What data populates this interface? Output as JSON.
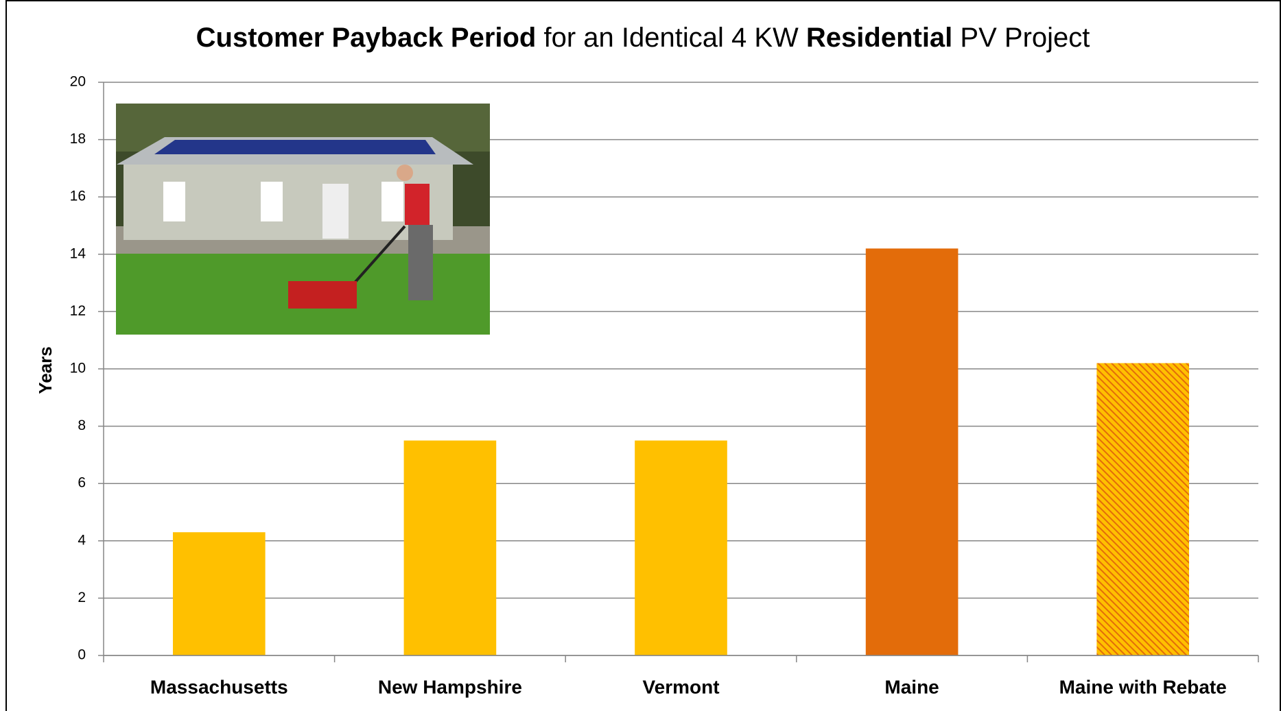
{
  "chart_data": {
    "type": "bar",
    "title": [
      {
        "text": "Customer Payback Period",
        "bold": true
      },
      {
        "text": " for an Identical 4 KW ",
        "bold": false
      },
      {
        "text": "Residential",
        "bold": true
      },
      {
        "text": " PV Project",
        "bold": false
      }
    ],
    "y_label": "Years",
    "categories": [
      "Massachusetts",
      "New Hampshire",
      "Vermont",
      "Maine",
      "Maine with Rebate"
    ],
    "values": [
      4.3,
      7.5,
      7.5,
      14.2,
      10.2
    ],
    "colors": [
      "#ffc000",
      "#ffc000",
      "#ffc000",
      "#e36c0a",
      "#f28a1a"
    ],
    "hatched": [
      false,
      false,
      false,
      false,
      true
    ],
    "ylim": [
      0,
      20
    ],
    "yticks": [
      0,
      2,
      4,
      6,
      8,
      10,
      12,
      14,
      16,
      18,
      20
    ],
    "grid": true
  }
}
